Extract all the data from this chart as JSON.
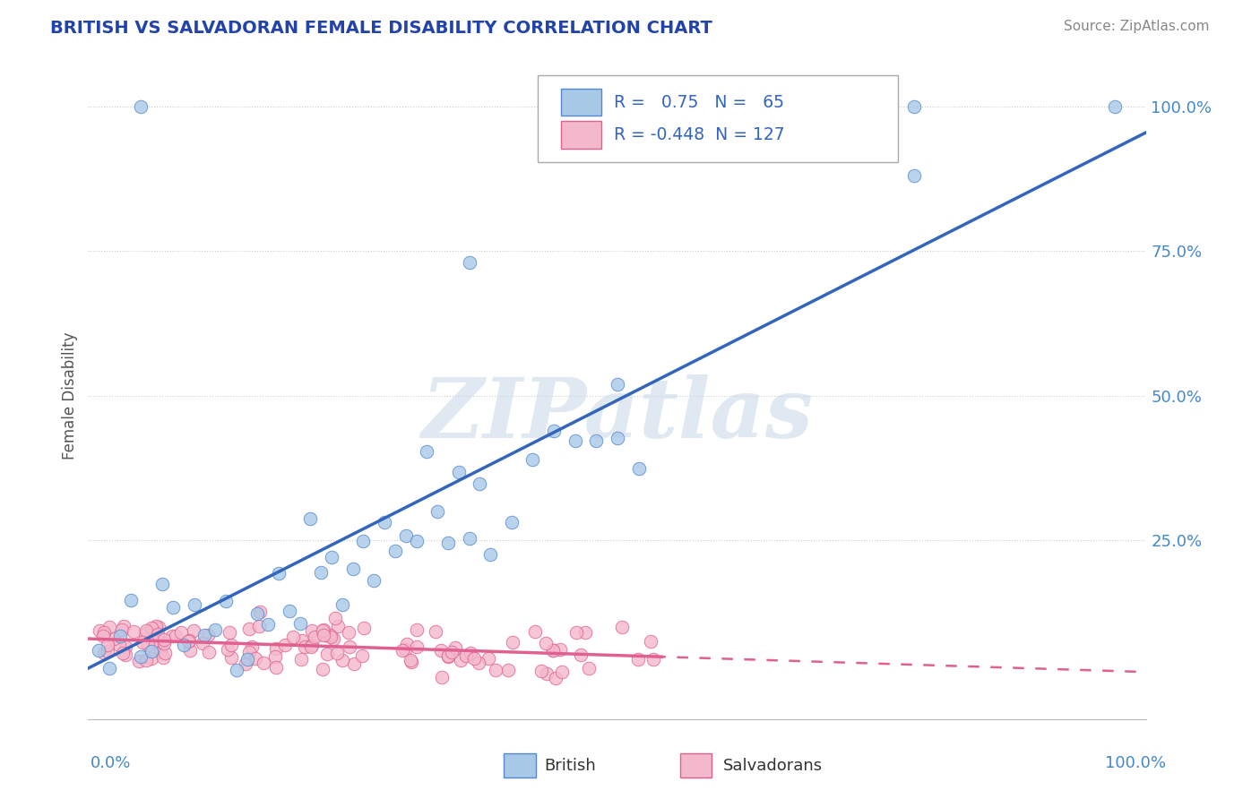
{
  "title": "BRITISH VS SALVADORAN FEMALE DISABILITY CORRELATION CHART",
  "source": "Source: ZipAtlas.com",
  "ylabel": "Female Disability",
  "watermark": "ZIPatlas",
  "british_R": 0.75,
  "british_N": 65,
  "salvadoran_R": -0.448,
  "salvadoran_N": 127,
  "british_color": "#a8c8e8",
  "salvadoran_color": "#f4b8cc",
  "british_edge_color": "#5588cc",
  "salvadoran_edge_color": "#e06090",
  "british_line_color": "#3366bb",
  "salvadoran_line_color": "#e06090",
  "grid_color": "#cccccc",
  "axis_label_color": "#4488cc",
  "title_color": "#2244aa",
  "background_color": "#ffffff",
  "xlim": [
    0.0,
    1.0
  ],
  "ylim": [
    -0.02,
    1.02
  ],
  "legend_R_color": "#3366bb",
  "legend_N_color": "#3366bb"
}
